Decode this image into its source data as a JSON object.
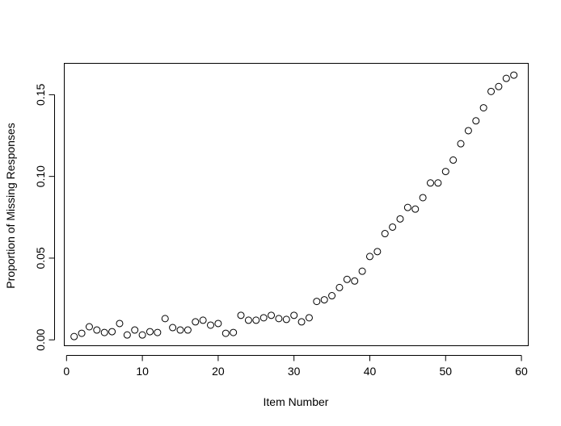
{
  "chart_data": {
    "type": "scatter",
    "title": "",
    "xlabel": "Item Number",
    "ylabel": "Proportion of Missing Responses",
    "xlim": [
      -0.3,
      60.9
    ],
    "ylim": [
      -0.0036,
      0.1692
    ],
    "x_ticks": [
      0,
      10,
      20,
      30,
      40,
      50,
      60
    ],
    "x_tick_labels": [
      "0",
      "10",
      "20",
      "30",
      "40",
      "50",
      "60"
    ],
    "y_ticks": [
      0.0,
      0.05,
      0.1,
      0.15
    ],
    "y_tick_labels": [
      "0.00",
      "0.05",
      "0.10",
      "0.15"
    ],
    "marker": "open-circle",
    "grid": false,
    "series": [
      {
        "x": [
          1,
          2,
          3,
          4,
          5,
          6,
          7,
          8,
          9,
          10,
          11,
          12,
          13,
          14,
          15,
          16,
          17,
          18,
          19,
          20,
          21,
          22,
          23,
          24,
          25,
          26,
          27,
          28,
          29,
          30,
          31,
          32,
          33,
          34,
          35,
          36,
          37,
          38,
          39,
          40,
          41,
          42,
          43,
          44,
          45,
          46,
          47,
          48,
          49,
          50,
          51,
          52,
          53,
          54,
          55,
          56,
          57,
          58,
          59
        ],
        "y": [
          0.002,
          0.004,
          0.008,
          0.006,
          0.0045,
          0.005,
          0.01,
          0.003,
          0.006,
          0.003,
          0.005,
          0.0045,
          0.013,
          0.0075,
          0.006,
          0.006,
          0.011,
          0.012,
          0.009,
          0.01,
          0.004,
          0.0045,
          0.015,
          0.012,
          0.012,
          0.0135,
          0.015,
          0.013,
          0.0125,
          0.015,
          0.011,
          0.0135,
          0.0235,
          0.0245,
          0.027,
          0.032,
          0.037,
          0.036,
          0.042,
          0.051,
          0.054,
          0.065,
          0.069,
          0.074,
          0.081,
          0.08,
          0.087,
          0.096,
          0.096,
          0.103,
          0.11,
          0.12,
          0.128,
          0.134,
          0.142,
          0.152,
          0.155,
          0.16,
          0.162
        ]
      }
    ]
  }
}
